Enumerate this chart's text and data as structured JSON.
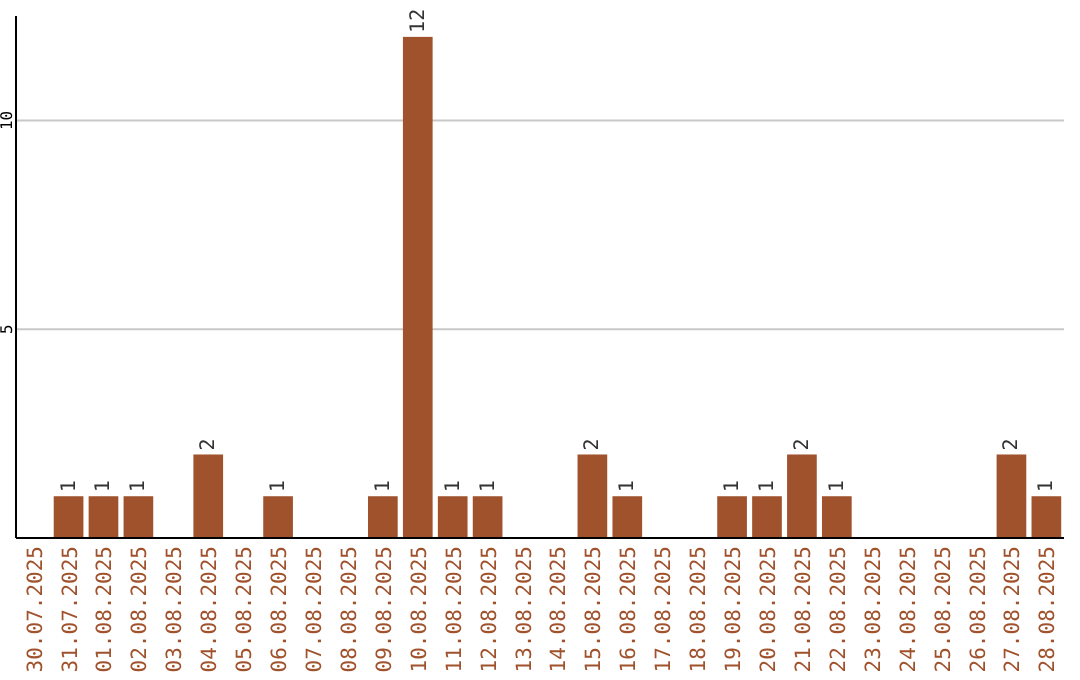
{
  "chart_data": {
    "type": "bar",
    "categories": [
      "30.07.2025",
      "31.07.2025",
      "01.08.2025",
      "02.08.2025",
      "03.08.2025",
      "04.08.2025",
      "05.08.2025",
      "06.08.2025",
      "07.08.2025",
      "08.08.2025",
      "09.08.2025",
      "10.08.2025",
      "11.08.2025",
      "12.08.2025",
      "13.08.2025",
      "14.08.2025",
      "15.08.2025",
      "16.08.2025",
      "17.08.2025",
      "18.08.2025",
      "19.08.2025",
      "20.08.2025",
      "21.08.2025",
      "22.08.2025",
      "23.08.2025",
      "24.08.2025",
      "25.08.2025",
      "26.08.2025",
      "27.08.2025",
      "28.08.2025"
    ],
    "values": [
      0,
      1,
      1,
      1,
      0,
      2,
      0,
      1,
      0,
      0,
      1,
      12,
      1,
      1,
      0,
      0,
      2,
      1,
      0,
      0,
      1,
      1,
      2,
      1,
      0,
      0,
      0,
      0,
      2,
      1
    ],
    "value_labels": [
      null,
      "1",
      "1",
      "1",
      null,
      "2",
      null,
      "1",
      null,
      null,
      "1",
      "12",
      "1",
      "1",
      null,
      null,
      "2",
      "1",
      null,
      null,
      "1",
      "1",
      "2",
      "1",
      null,
      null,
      null,
      null,
      "2",
      "1"
    ],
    "color": "#a0522d",
    "ylim": [
      0,
      12.5
    ],
    "yticks": [
      5,
      10
    ],
    "grid": "y"
  }
}
